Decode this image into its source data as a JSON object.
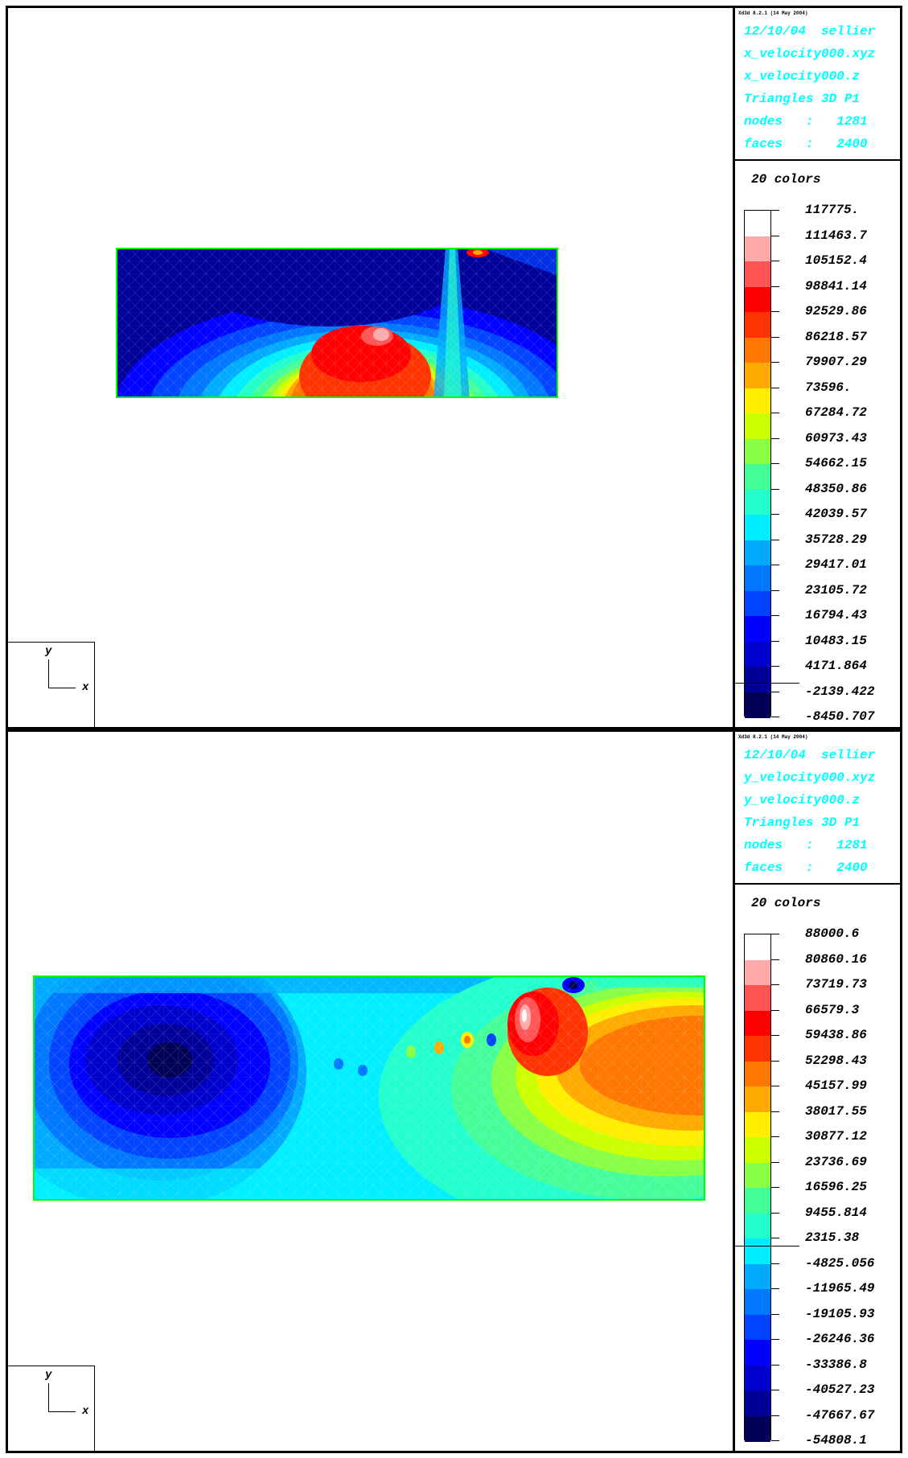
{
  "panels": [
    {
      "version": "Xd3d 8.2.1 (14 May 2004)",
      "info": [
        "12/10/04  sellier",
        "x_velocity000.xyz",
        "x_velocity000.z",
        "Triangles 3D P1",
        "nodes   :   1281",
        "faces   :   2400"
      ],
      "ncolors_label": "20 colors",
      "scale_labels": [
        "117775.",
        "111463.7",
        "105152.4",
        "98841.14",
        "92529.86",
        "86218.57",
        "79907.29",
        "73596.",
        "67284.72",
        "60973.43",
        "54662.15",
        "48350.86",
        "42039.57",
        "35728.29",
        "29417.01",
        "23105.72",
        "16794.43",
        "10483.15",
        "4171.864",
        "-2139.422",
        "-8450.707"
      ],
      "axis_x": "x",
      "axis_y": "y"
    },
    {
      "version": "Xd3d 8.2.1 (14 May 2004)",
      "info": [
        "12/10/04  sellier",
        "y_velocity000.xyz",
        "y_velocity000.z",
        "Triangles 3D P1",
        "nodes   :   1281",
        "faces   :   2400"
      ],
      "ncolors_label": "20 colors",
      "scale_labels": [
        "88000.6",
        "80860.16",
        "73719.73",
        "66579.3",
        "59438.86",
        "52298.43",
        "45157.99",
        "38017.55",
        "30877.12",
        "23736.69",
        "16596.25",
        "9455.814",
        "2315.38",
        "-4825.056",
        "-11965.49",
        "-19105.93",
        "-26246.36",
        "-33386.8",
        "-40527.23",
        "-47667.67",
        "-54808.1"
      ],
      "axis_x": "x",
      "axis_y": "y"
    }
  ],
  "palette": [
    "#ffffff",
    "#ffaaaa",
    "#ff5555",
    "#ff0000",
    "#ff3300",
    "#ff7700",
    "#ffaa00",
    "#ffee00",
    "#ccff00",
    "#88ff44",
    "#44ff99",
    "#22ffcc",
    "#00eeff",
    "#00aaff",
    "#0077ff",
    "#0044ff",
    "#0000ff",
    "#0000cc",
    "#000099",
    "#000055"
  ],
  "mesh_border_color": "#00ff00",
  "info_color": "#00ffff"
}
